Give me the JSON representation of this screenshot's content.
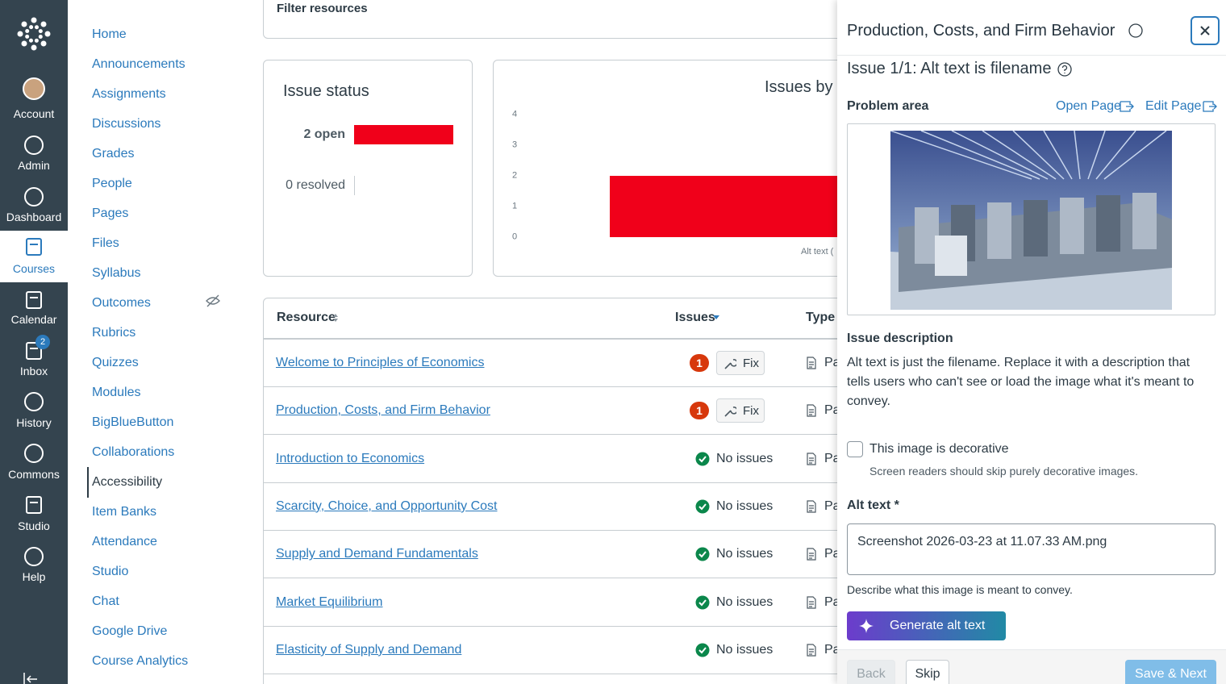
{
  "global_nav": {
    "items": [
      "Account",
      "Admin",
      "Dashboard",
      "Courses",
      "Calendar",
      "Inbox",
      "History",
      "Commons",
      "Studio",
      "Help"
    ],
    "active_index": 3,
    "inbox_badge": 2
  },
  "course_nav": {
    "items": [
      "Home",
      "Announcements",
      "Assignments",
      "Discussions",
      "Grades",
      "People",
      "Pages",
      "Files",
      "Syllabus",
      "Outcomes",
      "Rubrics",
      "Quizzes",
      "Modules",
      "BigBlueButton",
      "Collaborations",
      "Accessibility",
      "Item Banks",
      "Attendance",
      "Studio",
      "Chat",
      "Google Drive",
      "Course Analytics"
    ],
    "active_index": 15
  },
  "filter": {
    "label": "Filter resources"
  },
  "issue_status": {
    "title": "Issue status",
    "color": "#f0001a",
    "rows": [
      {
        "label": "2 open",
        "value": 2
      },
      {
        "label": "0 resolved",
        "value": 0
      }
    ]
  },
  "chart_data": {
    "type": "bar",
    "title": "Issues by t",
    "categories": [
      "Alt text ("
    ],
    "values": [
      2
    ],
    "color": "#f0001a",
    "ylim": [
      0,
      4
    ],
    "yticks": [
      0,
      1,
      2,
      3,
      4
    ]
  },
  "table": {
    "headers": [
      "Resource",
      "Issues",
      "Type"
    ],
    "rows": [
      {
        "resource": "Welcome to Principles of Economics",
        "issues": 1,
        "action": "Fix",
        "type": "Pa"
      },
      {
        "resource": "Production, Costs, and Firm Behavior",
        "issues": 1,
        "action": "Fix",
        "type": "Pa"
      },
      {
        "resource": "Introduction to Economics",
        "status": "No issues",
        "type": "Pa"
      },
      {
        "resource": "Scarcity, Choice, and Opportunity Cost",
        "status": "No issues",
        "type": "Pa"
      },
      {
        "resource": "Supply and Demand Fundamentals",
        "status": "No issues",
        "type": "Pa"
      },
      {
        "resource": "Market Equilibrium",
        "status": "No issues",
        "type": "Pa"
      },
      {
        "resource": "Elasticity of Supply and Demand",
        "status": "No issues",
        "type": "Pa"
      }
    ]
  },
  "panel": {
    "title": "Production, Costs, and Firm Behavior",
    "issue_heading": "Issue 1/1: Alt text is filename",
    "problem_area": "Problem area",
    "open_page": "Open Page",
    "edit_page": "Edit Page",
    "description_heading": "Issue description",
    "description": "Alt text is just the filename. Replace it with a description that tells users who can't see or load the image what it's meant to convey.",
    "decorative_label": "This image is decorative",
    "decorative_hint": "Screen readers should skip purely decorative images.",
    "alt_label": "Alt text *",
    "alt_value": "Screenshot 2026-03-23 at 11.07.33 AM.png",
    "alt_hint": "Describe what this image is meant to convey.",
    "generate": "Generate alt text",
    "back": "Back",
    "skip": "Skip",
    "save_next": "Save & Next"
  }
}
